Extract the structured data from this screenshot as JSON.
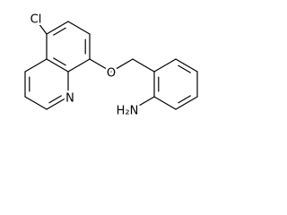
{
  "atoms": {
    "chlorine": "Cl",
    "oxygen": "O",
    "nitrogen": "N",
    "amine": "H₂N"
  }
}
